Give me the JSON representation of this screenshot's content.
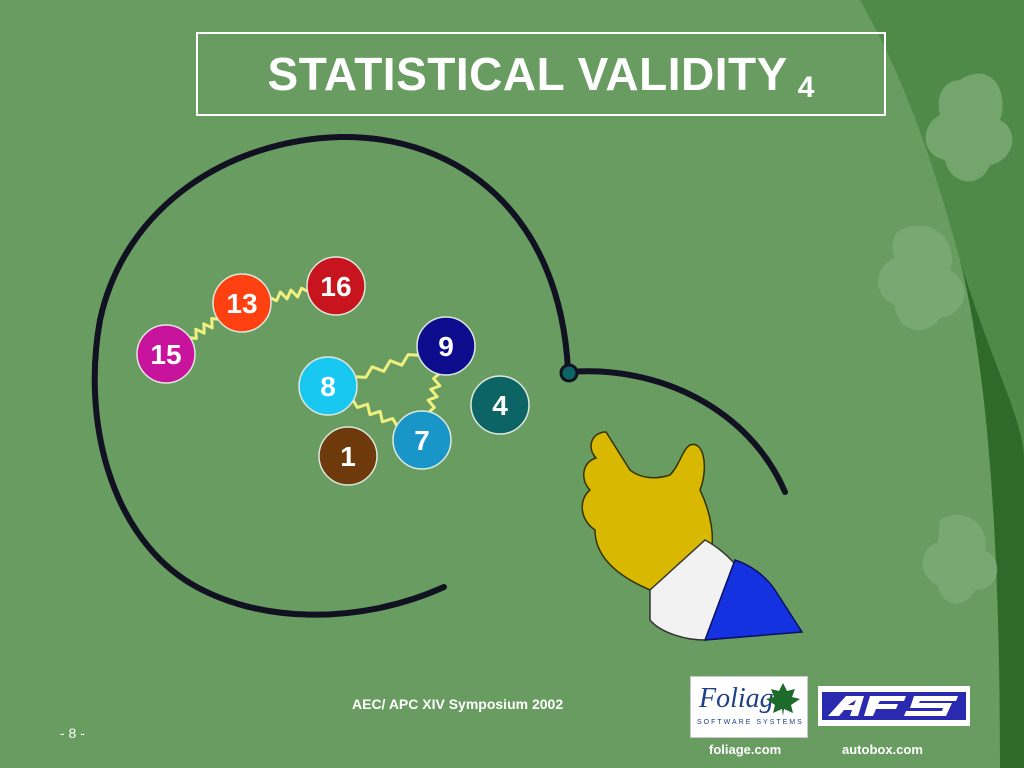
{
  "slide": {
    "title": "STATISTICAL VALIDITY",
    "title_suffix": "4",
    "page_number": "- 8 -",
    "footer_event": "AEC/ APC XIV Symposium 2002",
    "footer_links": [
      "foliage.com",
      "autobox.com"
    ],
    "logos": [
      {
        "name": "Foliage Software Systems",
        "word": "Foliage",
        "tagline": "SOFTWARE SYSTEMS"
      },
      {
        "name": "AFS"
      }
    ]
  },
  "colors": {
    "background": "#689c60",
    "circle_stroke": "#111122",
    "spark": "#f0f080",
    "hand": "#d8b800",
    "cuff": "#f2f2f2",
    "sleeve": "#1432e0"
  },
  "balls": [
    {
      "id": "16",
      "label": "16",
      "color": "#c8141e"
    },
    {
      "id": "13",
      "label": "13",
      "color": "#ff4010"
    },
    {
      "id": "15",
      "label": "15",
      "color": "#c8149c"
    },
    {
      "id": "9",
      "label": "9",
      "color": "#0c0c8c"
    },
    {
      "id": "8",
      "label": "8",
      "color": "#18c8f0"
    },
    {
      "id": "4",
      "label": "4",
      "color": "#0c6464"
    },
    {
      "id": "7",
      "label": "7",
      "color": "#1896c8"
    },
    {
      "id": "1",
      "label": "1",
      "color": "#6e3a0c"
    }
  ],
  "connections": [
    [
      "15",
      "13"
    ],
    [
      "13",
      "16"
    ],
    [
      "8",
      "9"
    ],
    [
      "9",
      "7"
    ],
    [
      "8",
      "7"
    ]
  ]
}
